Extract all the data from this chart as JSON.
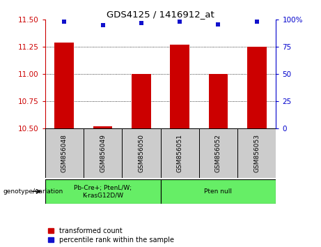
{
  "title": "GDS4125 / 1416912_at",
  "samples": [
    "GSM856048",
    "GSM856049",
    "GSM856050",
    "GSM856051",
    "GSM856052",
    "GSM856053"
  ],
  "bar_values": [
    11.29,
    10.52,
    11.0,
    11.27,
    11.0,
    11.25
  ],
  "percentile_values": [
    98,
    95,
    97,
    98,
    96,
    98
  ],
  "ylim_left": [
    10.5,
    11.5
  ],
  "yticks_left": [
    10.5,
    10.75,
    11.0,
    11.25,
    11.5
  ],
  "ylim_right": [
    0,
    100
  ],
  "yticks_right": [
    0,
    25,
    50,
    75,
    100
  ],
  "bar_color": "#cc0000",
  "dot_color": "#1111cc",
  "bar_width": 0.5,
  "genotype_groups": [
    {
      "label": "Pb-Cre+; PtenL/W;\nK-rasG12D/W",
      "color": "#66ee66"
    },
    {
      "label": "Pten null",
      "color": "#66ee66"
    }
  ],
  "left_tick_color": "#cc0000",
  "right_tick_color": "#0000cc",
  "grid_linestyle": "dotted",
  "bg_sample": "#cccccc",
  "bg_geno": "#66ee66"
}
